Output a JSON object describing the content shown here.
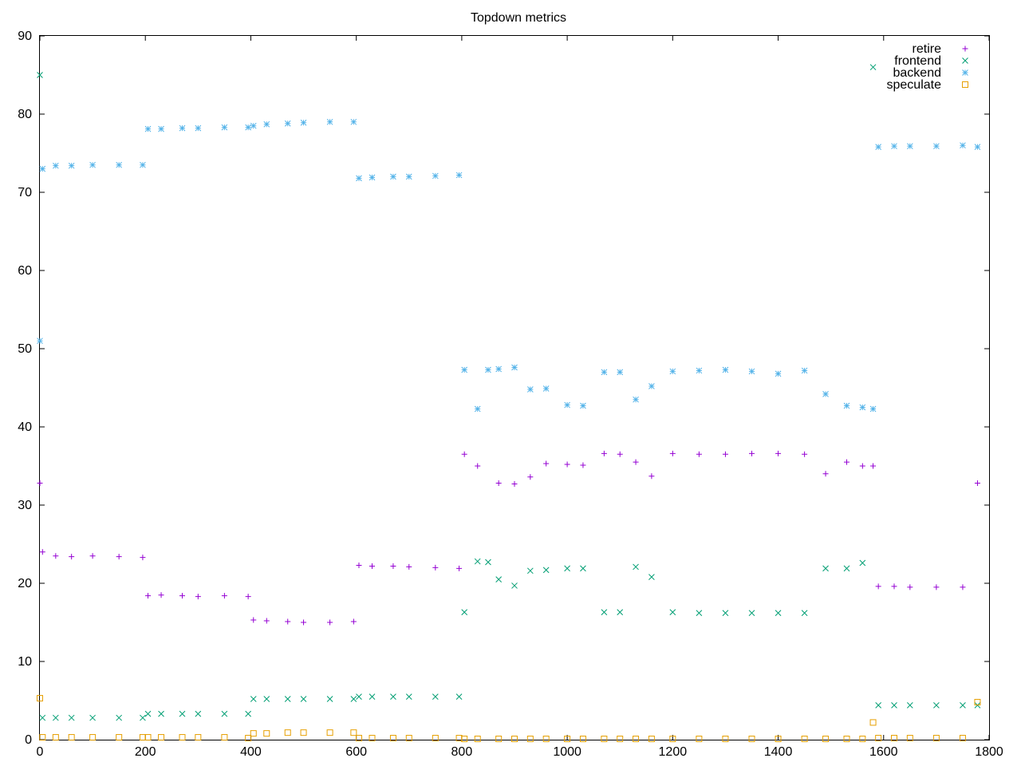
{
  "chart_data": {
    "type": "scatter",
    "title": "Topdown metrics",
    "xlabel": "",
    "ylabel": "",
    "xlim": [
      0,
      1800
    ],
    "ylim": [
      0,
      90
    ],
    "x_ticks": [
      0,
      200,
      400,
      600,
      800,
      1000,
      1200,
      1400,
      1600,
      1800
    ],
    "y_ticks": [
      0,
      10,
      20,
      30,
      40,
      50,
      60,
      70,
      80,
      90
    ],
    "grid": false,
    "legend_position": "top-right",
    "series": [
      {
        "name": "retire",
        "color": "#9400d3",
        "marker": "plus",
        "x": [
          0,
          5,
          30,
          60,
          100,
          150,
          195,
          205,
          230,
          270,
          300,
          350,
          395,
          405,
          430,
          470,
          500,
          550,
          595,
          605,
          630,
          670,
          700,
          750,
          795,
          805,
          830,
          870,
          900,
          930,
          960,
          1000,
          1030,
          1070,
          1100,
          1130,
          1160,
          1200,
          1250,
          1300,
          1350,
          1400,
          1450,
          1490,
          1530,
          1560,
          1580,
          1590,
          1620,
          1650,
          1700,
          1750,
          1778
        ],
        "y": [
          32.8,
          24.0,
          23.5,
          23.4,
          23.5,
          23.4,
          23.3,
          18.4,
          18.5,
          18.4,
          18.3,
          18.4,
          18.3,
          15.3,
          15.2,
          15.1,
          15.0,
          15.0,
          15.1,
          22.3,
          22.2,
          22.2,
          22.1,
          22.0,
          21.9,
          36.5,
          35.0,
          32.8,
          32.7,
          33.6,
          35.3,
          35.2,
          35.1,
          36.6,
          36.5,
          35.5,
          33.7,
          36.6,
          36.5,
          36.5,
          36.6,
          36.6,
          36.5,
          34.0,
          35.5,
          35.0,
          35.0,
          19.6,
          19.6,
          19.5,
          19.5,
          19.5,
          32.8
        ]
      },
      {
        "name": "frontend",
        "color": "#009e73",
        "marker": "cross",
        "x": [
          0,
          5,
          30,
          60,
          100,
          150,
          195,
          205,
          230,
          270,
          300,
          350,
          395,
          405,
          430,
          470,
          500,
          550,
          595,
          605,
          630,
          670,
          700,
          750,
          795,
          805,
          830,
          850,
          870,
          900,
          930,
          960,
          1000,
          1030,
          1070,
          1100,
          1130,
          1160,
          1200,
          1250,
          1300,
          1350,
          1400,
          1450,
          1490,
          1530,
          1560,
          1580,
          1590,
          1620,
          1650,
          1700,
          1750,
          1778
        ],
        "y": [
          85.0,
          2.8,
          2.8,
          2.8,
          2.8,
          2.8,
          2.8,
          3.3,
          3.3,
          3.3,
          3.3,
          3.3,
          3.3,
          5.2,
          5.2,
          5.2,
          5.2,
          5.2,
          5.2,
          5.5,
          5.5,
          5.5,
          5.5,
          5.5,
          5.5,
          16.3,
          22.8,
          22.7,
          20.5,
          19.7,
          21.6,
          21.7,
          21.9,
          21.9,
          16.3,
          16.3,
          22.1,
          20.8,
          16.3,
          16.2,
          16.2,
          16.2,
          16.2,
          16.2,
          21.9,
          21.9,
          22.6,
          86.0,
          4.4,
          4.4,
          4.4,
          4.4,
          4.4,
          4.4
        ]
      },
      {
        "name": "backend",
        "color": "#56b4e9",
        "marker": "star",
        "x": [
          0,
          5,
          30,
          60,
          100,
          150,
          195,
          205,
          230,
          270,
          300,
          350,
          395,
          405,
          430,
          470,
          500,
          550,
          595,
          605,
          630,
          670,
          700,
          750,
          795,
          805,
          830,
          850,
          870,
          900,
          930,
          960,
          1000,
          1030,
          1070,
          1100,
          1130,
          1160,
          1200,
          1250,
          1300,
          1350,
          1400,
          1450,
          1490,
          1530,
          1560,
          1580,
          1590,
          1620,
          1650,
          1700,
          1750,
          1778
        ],
        "y": [
          51.0,
          73.0,
          73.4,
          73.4,
          73.5,
          73.5,
          73.5,
          78.1,
          78.1,
          78.2,
          78.2,
          78.3,
          78.3,
          78.5,
          78.7,
          78.8,
          78.9,
          79.0,
          79.0,
          71.8,
          71.9,
          72.0,
          72.0,
          72.1,
          72.2,
          47.3,
          42.3,
          47.3,
          47.4,
          47.6,
          44.8,
          44.9,
          42.8,
          42.7,
          47.0,
          47.0,
          43.5,
          45.2,
          47.1,
          47.2,
          47.3,
          47.1,
          46.8,
          47.2,
          44.2,
          42.7,
          42.5,
          42.3,
          75.8,
          75.9,
          75.9,
          75.9,
          76.0,
          75.8
        ]
      },
      {
        "name": "speculate",
        "color": "#e69f00",
        "marker": "square",
        "x": [
          0,
          5,
          30,
          60,
          100,
          150,
          195,
          205,
          230,
          270,
          300,
          350,
          395,
          405,
          430,
          470,
          500,
          550,
          595,
          605,
          630,
          670,
          700,
          750,
          795,
          805,
          830,
          870,
          900,
          930,
          960,
          1000,
          1030,
          1070,
          1100,
          1130,
          1160,
          1200,
          1250,
          1300,
          1350,
          1400,
          1450,
          1490,
          1530,
          1560,
          1580,
          1590,
          1620,
          1650,
          1700,
          1750,
          1778
        ],
        "y": [
          5.3,
          0.3,
          0.3,
          0.3,
          0.3,
          0.3,
          0.3,
          0.3,
          0.3,
          0.3,
          0.3,
          0.3,
          0.2,
          0.8,
          0.8,
          0.9,
          0.9,
          0.9,
          0.9,
          0.2,
          0.2,
          0.2,
          0.2,
          0.2,
          0.2,
          0.1,
          0.1,
          0.1,
          0.1,
          0.1,
          0.1,
          0.1,
          0.1,
          0.1,
          0.1,
          0.1,
          0.1,
          0.1,
          0.1,
          0.1,
          0.1,
          0.1,
          0.1,
          0.1,
          0.1,
          0.1,
          2.2,
          0.2,
          0.2,
          0.2,
          0.2,
          0.2,
          4.8
        ]
      }
    ]
  }
}
